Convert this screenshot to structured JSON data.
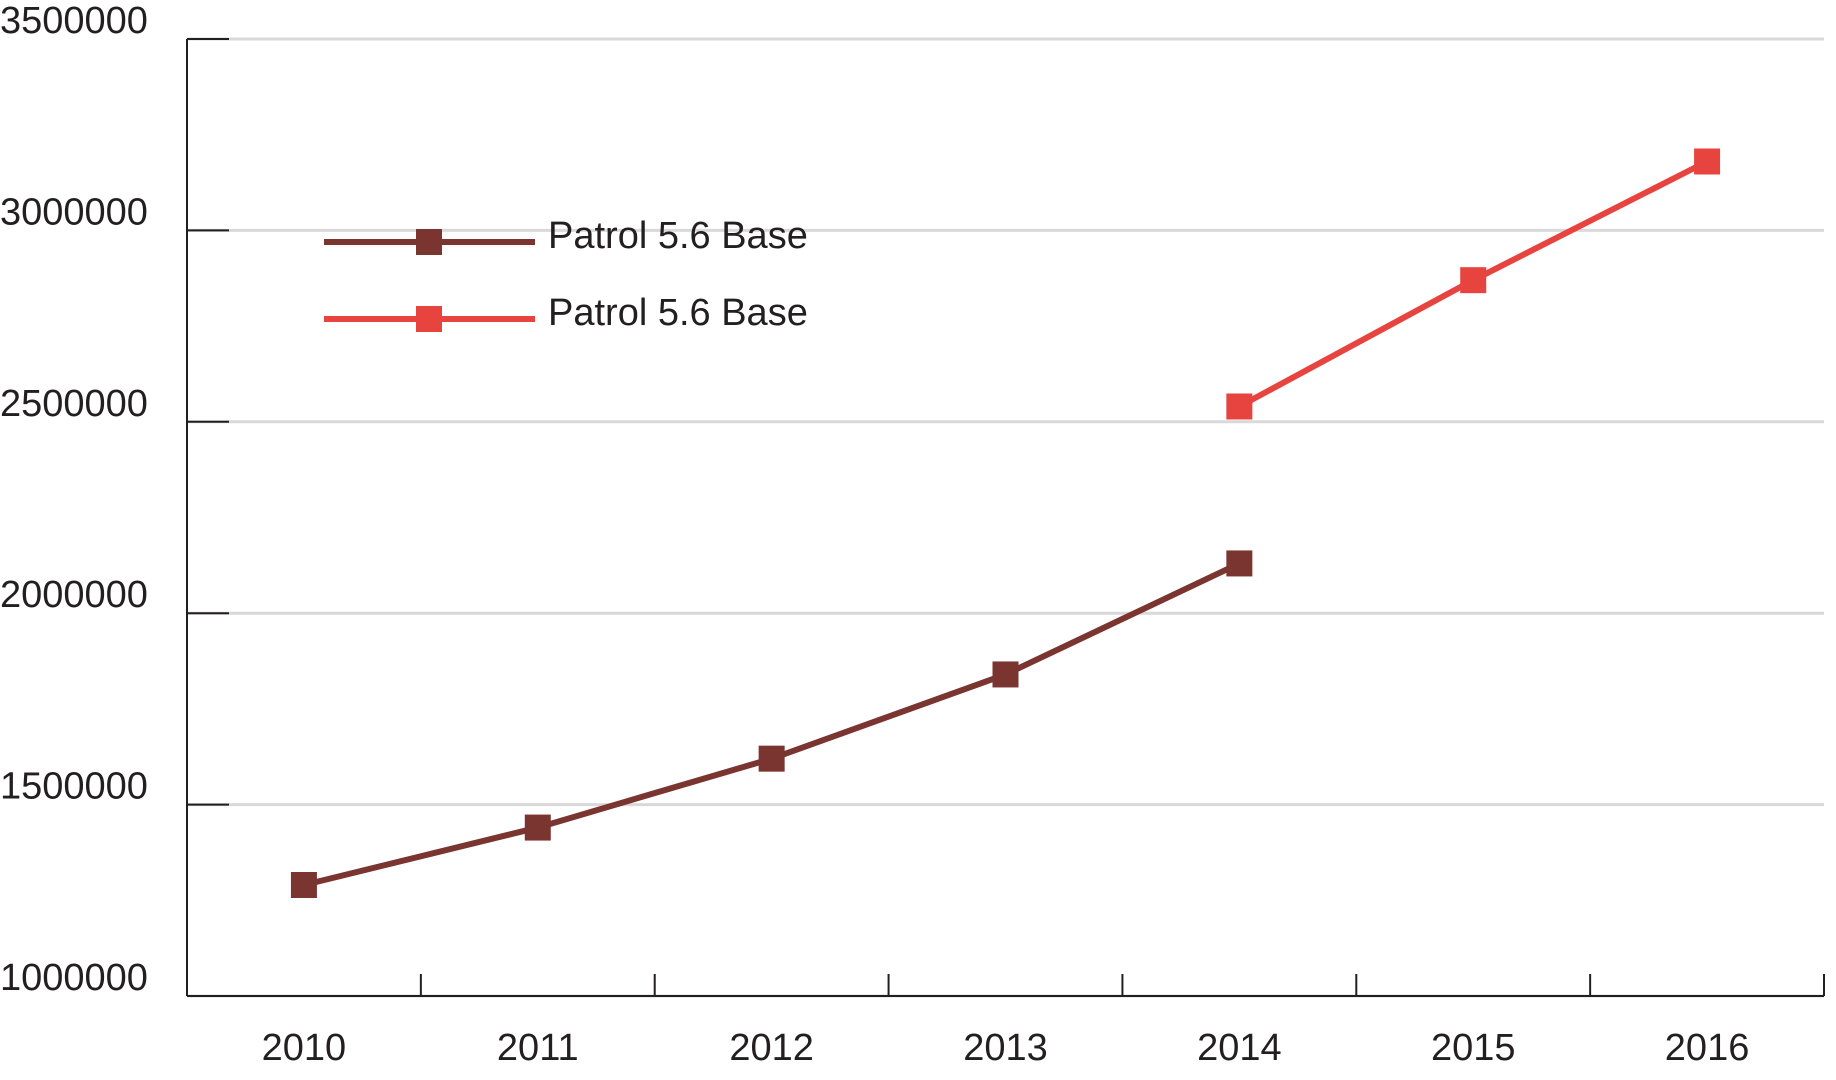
{
  "chart_data": {
    "type": "line",
    "categories": [
      "2010",
      "2011",
      "2012",
      "2013",
      "2014",
      "2015",
      "2016"
    ],
    "series": [
      {
        "name": "Patrol 5.6 Base",
        "color": "#7b3530",
        "values": [
          1290000,
          1440000,
          1620000,
          1840000,
          2130000,
          null,
          null
        ]
      },
      {
        "name": "Patrol 5.6 Base",
        "color": "#e8443f",
        "values": [
          null,
          null,
          null,
          null,
          2540000,
          2870000,
          3180000
        ]
      }
    ],
    "ylim": [
      1000000,
      3500000
    ],
    "yticks": [
      1000000,
      1500000,
      2000000,
      2500000,
      3000000,
      3500000
    ],
    "grid": true,
    "legend": "upper-left"
  }
}
